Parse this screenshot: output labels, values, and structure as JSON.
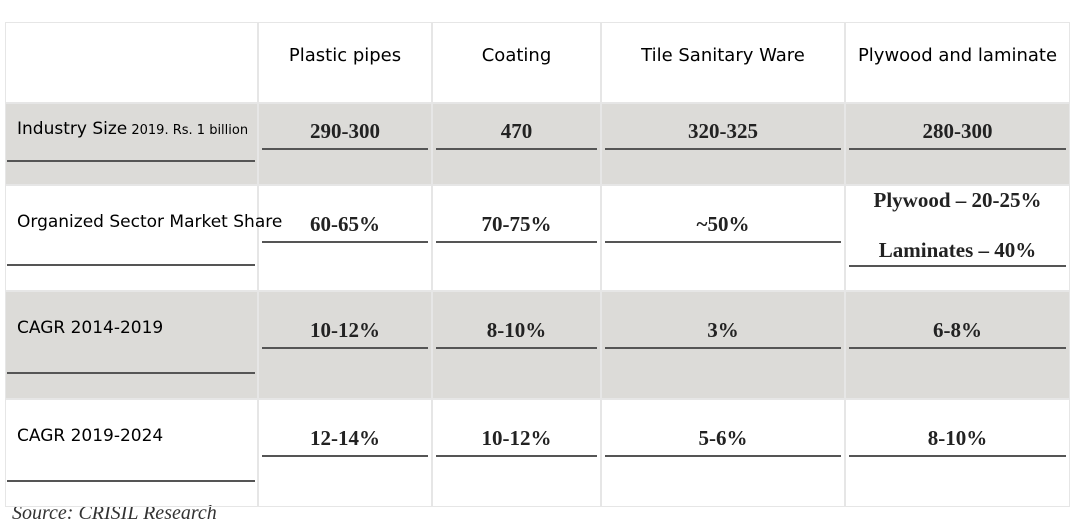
{
  "table": {
    "header": [
      "Plastic pipes",
      "Coating",
      "Tile Sanitary Ware",
      "Plywood and laminate"
    ],
    "rows": [
      {
        "label": "Industry Size",
        "label_note": "2019. Rs. 1 billion",
        "cells": [
          "290-300",
          "470",
          "320-325",
          "280-300"
        ]
      },
      {
        "label": "Organized Sector Market Share",
        "cells": [
          "60-65%",
          "70-75%",
          "~50%",
          [
            "Plywood – 20-25%",
            "Laminates – 40%"
          ]
        ]
      },
      {
        "label": "CAGR 2014-2019",
        "cells": [
          "10-12%",
          "8-10%",
          "3%",
          "6-8%"
        ]
      },
      {
        "label": "CAGR 2019-2024",
        "cells": [
          "12-14%",
          "10-12%",
          "5-6%",
          "8-10%"
        ]
      }
    ]
  },
  "source": "Source: CRISIL Research"
}
